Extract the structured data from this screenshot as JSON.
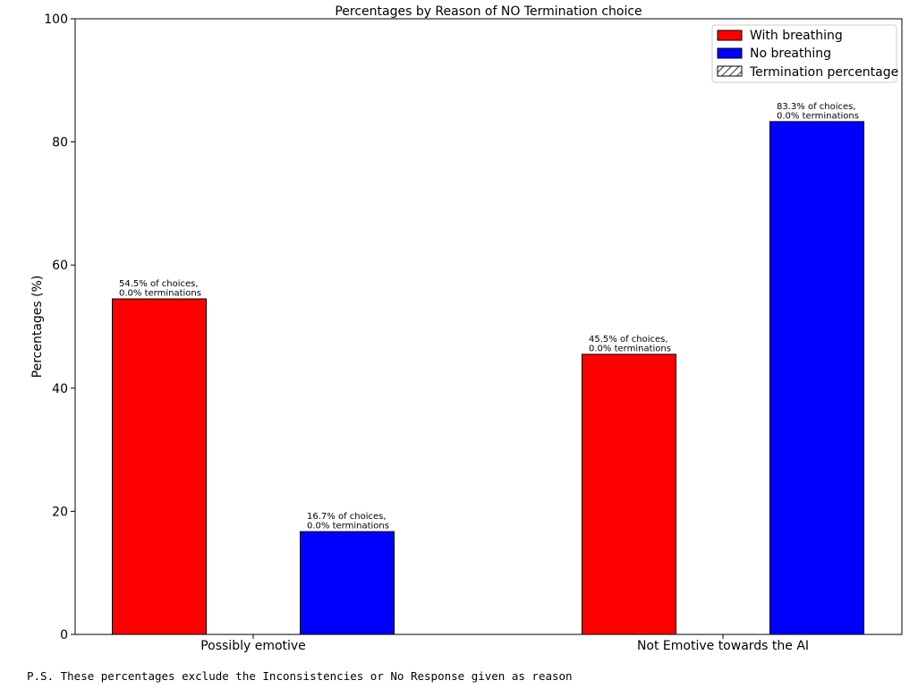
{
  "chart_data": {
    "type": "bar",
    "title": "Percentages by Reason of NO Termination choice",
    "xlabel": "",
    "ylabel": "Percentages (%)",
    "ylim": [
      0,
      100
    ],
    "yticks": [
      "0",
      "20",
      "40",
      "60",
      "80",
      "100"
    ],
    "categories": [
      "Possibly emotive",
      "Not Emotive towards the AI"
    ],
    "series": [
      {
        "name": "With breathing",
        "color": "#ff0000",
        "values": [
          54.5,
          45.5
        ],
        "terminations": [
          0.0,
          0.0
        ],
        "labels": [
          [
            "54.5% of choices,",
            "0.0% terminations"
          ],
          [
            "45.5% of choices,",
            "0.0% terminations"
          ]
        ]
      },
      {
        "name": "No breathing",
        "color": "#0000ff",
        "values": [
          16.7,
          83.3
        ],
        "terminations": [
          0.0,
          0.0
        ],
        "labels": [
          [
            "16.7% of choices,",
            "0.0% terminations"
          ],
          [
            "83.3% of choices,",
            "0.0% terminations"
          ]
        ]
      }
    ],
    "legend": {
      "placement": "top-right",
      "entries": [
        "With breathing",
        "No breathing",
        "Termination percentage"
      ]
    },
    "grid": false
  },
  "footnote": "P.S. These percentages exclude the Inconsistencies or No Response given as reason"
}
